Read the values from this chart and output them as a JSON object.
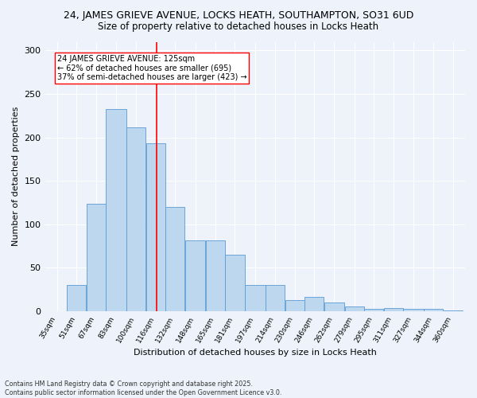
{
  "title_line1": "24, JAMES GRIEVE AVENUE, LOCKS HEATH, SOUTHAMPTON, SO31 6UD",
  "title_line2": "Size of property relative to detached houses in Locks Heath",
  "xlabel": "Distribution of detached houses by size in Locks Heath",
  "ylabel": "Number of detached properties",
  "categories": [
    "35sqm",
    "51sqm",
    "67sqm",
    "83sqm",
    "100sqm",
    "116sqm",
    "132sqm",
    "148sqm",
    "165sqm",
    "181sqm",
    "197sqm",
    "214sqm",
    "230sqm",
    "246sqm",
    "262sqm",
    "279sqm",
    "295sqm",
    "311sqm",
    "327sqm",
    "344sqm",
    "360sqm"
  ],
  "bar_color": "#BDD7EE",
  "bar_edge_color": "#5B9BD5",
  "vline_color": "red",
  "annotation_text": "24 JAMES GRIEVE AVENUE: 125sqm\n← 62% of detached houses are smaller (695)\n37% of semi-detached houses are larger (423) →",
  "annotation_box_color": "white",
  "annotation_box_edge": "red",
  "ylim": [
    0,
    310
  ],
  "yticks": [
    0,
    50,
    100,
    150,
    200,
    250,
    300
  ],
  "background_color": "#EEF3FB",
  "grid_color": "white",
  "footer_line1": "Contains HM Land Registry data © Crown copyright and database right 2025.",
  "footer_line2": "Contains public sector information licensed under the Open Government Licence v3.0.",
  "bin_edges": [
    35,
    51,
    67,
    83,
    100,
    116,
    132,
    148,
    165,
    181,
    197,
    214,
    230,
    246,
    262,
    279,
    295,
    311,
    327,
    344,
    360
  ],
  "bin_values": [
    0,
    30,
    124,
    233,
    212,
    193,
    120,
    82,
    82,
    65,
    30,
    30,
    13,
    17,
    10,
    6,
    3,
    4,
    3,
    3,
    1
  ],
  "vline_x": 125
}
